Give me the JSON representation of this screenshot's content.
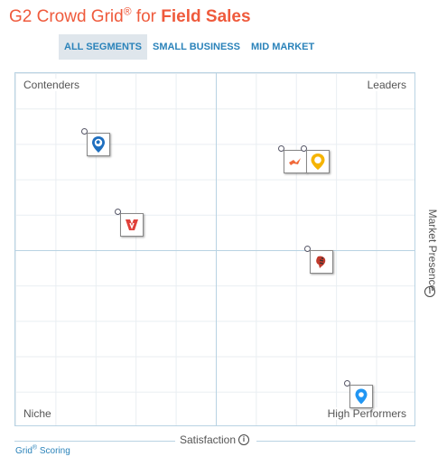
{
  "header": {
    "prefix": "G2 Crowd Grid",
    "registered": "®",
    "middle": " for ",
    "category": "Field Sales"
  },
  "tabs": [
    {
      "label": "ALL SEGMENTS",
      "active": true
    },
    {
      "label": "SMALL BUSINESS",
      "active": false
    },
    {
      "label": "MID MARKET",
      "active": false
    }
  ],
  "quadrants": {
    "top_left": "Contenders",
    "top_right": "Leaders",
    "bottom_left": "Niche",
    "bottom_right": "High Performers"
  },
  "axes": {
    "x_label": "Satisfaction",
    "y_label": "Market Presence",
    "info_glyph": "i"
  },
  "footer": {
    "prefix": "Grid",
    "registered": "®",
    "suffix": " Scoring"
  },
  "vendors": [
    {
      "icon": "globe-pin-logo-icon",
      "color": "#1f6fbf"
    },
    {
      "icon": "red-chevron-logo-icon",
      "color": "#e0403a"
    },
    {
      "icon": "orange-bird-logo-icon",
      "color": "#f06a3a"
    },
    {
      "icon": "yellow-map-pin-logo-icon",
      "color": "#f5b400"
    },
    {
      "icon": "rooster-logo-icon",
      "color": "#c0392b"
    },
    {
      "icon": "blue-map-pin-logo-icon",
      "color": "#2196f3"
    }
  ],
  "colors": {
    "accent": "#ef5a3c",
    "link": "#2b83ba",
    "grid_border": "#b9d3e3"
  }
}
